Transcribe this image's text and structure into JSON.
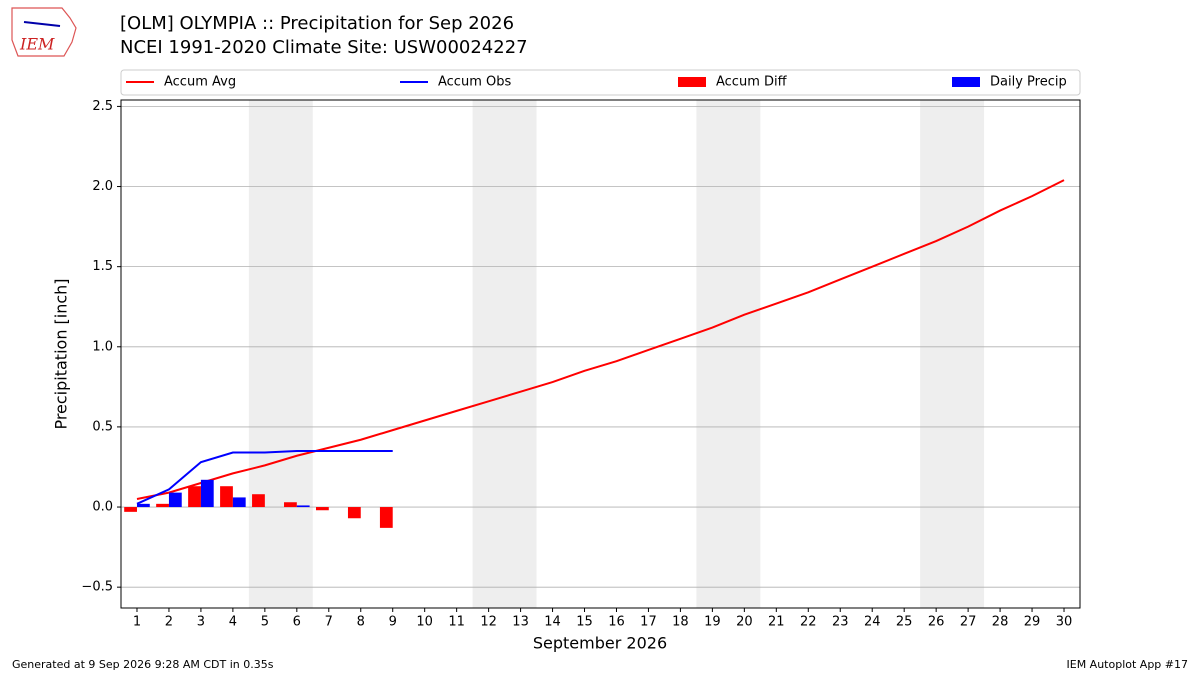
{
  "chart_data": {
    "type": "line",
    "logo_text": "IEM",
    "title": "[OLM] OLYMPIA :: Precipitation for Sep 2026",
    "subtitle": "NCEI 1991-2020 Climate Site: USW00024227",
    "x_label": "September 2026",
    "y_label": "Precipitation [inch]",
    "footer_left": "Generated at 9 Sep 2026 9:28 AM CDT in 0.35s",
    "footer_right": "IEM Autoplot App #17",
    "x": [
      1,
      2,
      3,
      4,
      5,
      6,
      7,
      8,
      9,
      10,
      11,
      12,
      13,
      14,
      15,
      16,
      17,
      18,
      19,
      20,
      21,
      22,
      23,
      24,
      25,
      26,
      27,
      28,
      29,
      30
    ],
    "xlim": [
      0.5,
      30.5
    ],
    "xticks": [
      1,
      2,
      3,
      4,
      5,
      6,
      7,
      8,
      9,
      10,
      11,
      12,
      13,
      14,
      15,
      16,
      17,
      18,
      19,
      20,
      21,
      22,
      23,
      24,
      25,
      26,
      27,
      28,
      29,
      30
    ],
    "ylim": [
      -0.63,
      2.54
    ],
    "yticks": [
      {
        "value": -0.5,
        "label": "−0.5"
      },
      {
        "value": 0,
        "label": "0.0"
      },
      0.5,
      {
        "value": 1,
        "label": "1.0"
      },
      1.5,
      {
        "value": 2,
        "label": "2.0"
      },
      2.5
    ],
    "grid": true,
    "shaded_x": [
      [
        4.5,
        6.5
      ],
      [
        11.5,
        13.5
      ],
      [
        18.5,
        20.5
      ],
      [
        25.5,
        27.5
      ]
    ],
    "shade_color": "#eeeeee",
    "series": [
      {
        "name": "Accum Avg",
        "kind": "line",
        "color": "#ff0000",
        "values": [
          0.05,
          0.09,
          0.15,
          0.21,
          0.26,
          0.32,
          0.37,
          0.42,
          0.48,
          0.54,
          0.6,
          0.66,
          0.72,
          0.78,
          0.85,
          0.91,
          0.98,
          1.05,
          1.12,
          1.2,
          1.27,
          1.34,
          1.42,
          1.5,
          1.58,
          1.66,
          1.75,
          1.85,
          1.94,
          2.04
        ]
      },
      {
        "name": "Accum Obs",
        "kind": "line",
        "color": "#0000ff",
        "values": [
          0.02,
          0.11,
          0.28,
          0.34,
          0.34,
          0.35,
          0.35,
          0.35,
          0.35,
          null,
          null,
          null,
          null,
          null,
          null,
          null,
          null,
          null,
          null,
          null,
          null,
          null,
          null,
          null,
          null,
          null,
          null,
          null,
          null,
          null
        ]
      },
      {
        "name": "Accum Diff",
        "kind": "bar",
        "offset": -0.4,
        "color": "#ff0000",
        "values": [
          -0.03,
          0.02,
          0.13,
          0.13,
          0.08,
          0.03,
          -0.02,
          -0.07,
          -0.13,
          null,
          null,
          null,
          null,
          null,
          null,
          null,
          null,
          null,
          null,
          null,
          null,
          null,
          null,
          null,
          null,
          null,
          null,
          null,
          null,
          null
        ]
      },
      {
        "name": "Daily Precip",
        "kind": "bar",
        "offset": 0,
        "color": "#0000ff",
        "values": [
          0.02,
          0.09,
          0.17,
          0.06,
          0,
          0.01,
          0,
          0,
          0,
          null,
          null,
          null,
          null,
          null,
          null,
          null,
          null,
          null,
          null,
          null,
          null,
          null,
          null,
          null,
          null,
          null,
          null,
          null,
          null,
          null
        ]
      }
    ]
  }
}
